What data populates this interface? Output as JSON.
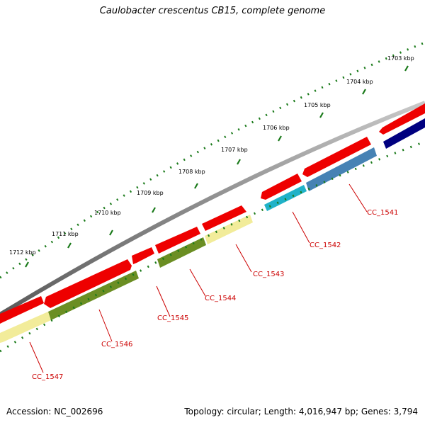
{
  "title": "Caulobacter crescentus CB15, complete genome",
  "footer": {
    "accession": "Accession: NC_002696",
    "summary": "Topology: circular; Length: 4,016,947 bp; Genes: 3,794"
  },
  "ruler_labels": [
    "1703 kbp",
    "1704 kbp",
    "1705 kbp",
    "1706 kbp",
    "1707 kbp",
    "1708 kbp",
    "1709 kbp",
    "1710 kbp",
    "1711 kbp",
    "1712 kbp"
  ],
  "gene_labels": [
    "CC_1541",
    "CC_1542",
    "CC_1543",
    "CC_1544",
    "CC_1545",
    "CC_1546",
    "CC_1547"
  ],
  "colors": {
    "backbone": "#8a8a8a",
    "cds_forward": "#ee0000",
    "tick": "#1a7a1a",
    "label": "#cc0000",
    "feature_olive": "#6b8e23",
    "feature_pale": "#f2ec9a",
    "feature_steelblue": "#4682b4",
    "feature_navy": "#000080",
    "feature_cyan": "#20b2c8"
  }
}
